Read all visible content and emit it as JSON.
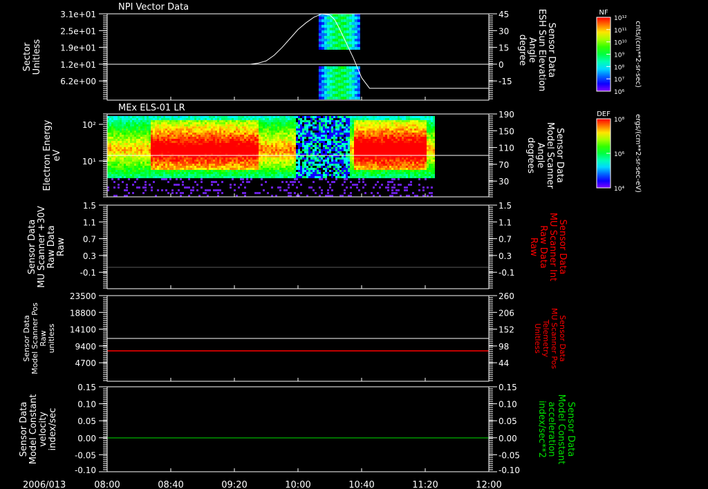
{
  "colors": {
    "background": "#000000",
    "axis": "#ffffff",
    "red": "#ff0000",
    "green": "#00e000"
  },
  "time_axis": {
    "date": "2006/013",
    "range": [
      "08:00",
      "12:00"
    ],
    "ticks": [
      "08:00",
      "08:40",
      "09:20",
      "10:00",
      "10:40",
      "11:20",
      "12:00"
    ]
  },
  "chart_data": [
    {
      "type": "heatmap",
      "title": "NPI Vector Data",
      "ylabel_left": [
        "Sector",
        "Unitless"
      ],
      "left_ticks": [
        "3.1e+01",
        "2.5e+01",
        "1.9e+01",
        "1.2e+01",
        "6.2e+00"
      ],
      "ylabel_right": [
        "Sensor Data",
        "ESH Sun Elevation",
        "Angle",
        "degree"
      ],
      "right_ticks": [
        "45",
        "30",
        "15",
        "0",
        "-15"
      ],
      "right_range": [
        -31,
        45
      ],
      "reference_line_left": 12,
      "data_window_minutes": [
        133,
        158
      ],
      "line_series": {
        "name": "ESH Sun Elevation Angle",
        "t_minutes": [
          0,
          90,
          95,
          100,
          105,
          110,
          115,
          120,
          125,
          130,
          135,
          140,
          143,
          146,
          150,
          155,
          160,
          165,
          180,
          240
        ],
        "values": [
          0,
          0,
          1,
          3,
          8,
          15,
          23,
          31,
          37,
          42,
          45,
          44,
          40,
          32,
          20,
          5,
          -12,
          -21.5,
          -21.5,
          -21.5
        ]
      },
      "colorbar": {
        "label": "NF",
        "units": "cnts/(cm**2-sr-sec)",
        "ticks": [
          "10¹²",
          "10¹¹",
          "10¹⁰",
          "10⁹",
          "10⁸",
          "10⁷",
          "10⁶"
        ]
      }
    },
    {
      "type": "heatmap",
      "title": "MEx ELS-01 LR",
      "ylabel_left": [
        "Electron Energy",
        "eV"
      ],
      "left_ticks": [
        "10²",
        "10¹"
      ],
      "ylabel_right": [
        "Sensor Data",
        "Model Scanner",
        "Angle",
        "degrees"
      ],
      "right_ticks": [
        "190",
        "150",
        "110",
        "70",
        "30"
      ],
      "right_range": [
        0,
        190
      ],
      "reference_line_right": 97,
      "data_window_minutes": [
        0,
        205
      ],
      "colorbar": {
        "label": "DEF",
        "units": "ergs/(cm**2-sr-sec-eV)",
        "ticks": [
          "10⁸",
          "10⁶",
          "10⁴"
        ]
      }
    },
    {
      "type": "line",
      "ylabel_left": [
        "Sensor Data",
        "MU Scanner +30V",
        "Raw Data",
        "Raw"
      ],
      "left_ticks": [
        "1.5",
        "1.1",
        "0.7",
        "0.3",
        "-0.1"
      ],
      "ylabel_right": [
        "Sensor Data",
        "MU Scanner Int",
        "Raw Data",
        "Raw"
      ],
      "right_ticks": [
        "1.5",
        "1.1",
        "0.7",
        "0.3",
        "-0.1"
      ],
      "range": [
        -0.4,
        1.5
      ],
      "series": [
        {
          "name": "MU Scanner Int",
          "value": -0.02,
          "color": "#5a5a5a"
        }
      ]
    },
    {
      "type": "line",
      "ylabel_left": [
        "Sensor Data",
        "Model Scanner Pos",
        "Raw",
        "unitless"
      ],
      "left_ticks": [
        "23500",
        "18800",
        "14100",
        "9400",
        "4700"
      ],
      "left_range": [
        0,
        23500
      ],
      "ylabel_right": [
        "Sensor Data",
        "MU Scanner Pos",
        "Telemetry",
        "Unitless"
      ],
      "right_ticks": [
        "260",
        "206",
        "152",
        "98",
        "44"
      ],
      "right_range": [
        -10,
        260
      ],
      "series": [
        {
          "name": "Model Scanner Pos",
          "axis": "left",
          "value": 11900,
          "color": "#ffffff"
        },
        {
          "name": "MU Scanner Pos",
          "axis": "right",
          "value": 88,
          "color": "#ff0000"
        }
      ]
    },
    {
      "type": "line",
      "ylabel_left": [
        "Sensor Data",
        "Model Constant",
        "velocity",
        "index/sec"
      ],
      "left_ticks": [
        "0.15",
        "0.10",
        "0.05",
        "0.00",
        "-0.05",
        "-0.10"
      ],
      "ylabel_right": [
        "Sensor Data",
        "Model Constant",
        "acceleration",
        "index/sec**2"
      ],
      "right_ticks": [
        "0.15",
        "0.10",
        "0.05",
        "0.00",
        "-0.05",
        "-0.10"
      ],
      "range": [
        -0.1,
        0.15
      ],
      "series": [
        {
          "name": "Model Constant acceleration",
          "value": 0.0,
          "color": "#00e000"
        }
      ]
    }
  ]
}
